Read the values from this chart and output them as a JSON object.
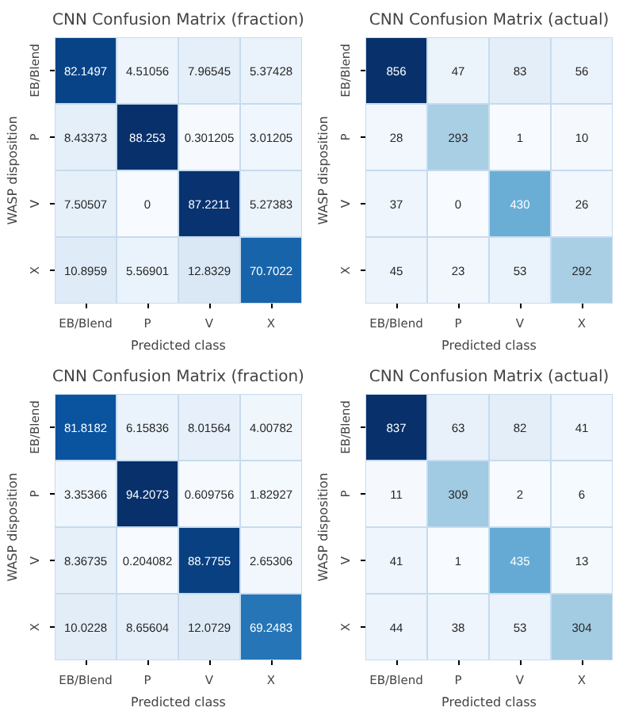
{
  "chart_data": [
    {
      "type": "heatmap",
      "title": "CNN Confusion Matrix (fraction)",
      "xlabel": "Predicted class",
      "ylabel": "WASP disposition",
      "categories": [
        "EB/Blend",
        "P",
        "V",
        "X"
      ],
      "y_categories": [
        "EB/Blend",
        "P",
        "V",
        "X"
      ],
      "data_labels": true,
      "cells": [
        [
          82.1497,
          4.51056,
          7.96545,
          5.37428
        ],
        [
          8.43373,
          88.253,
          0.301205,
          3.01205
        ],
        [
          7.50507,
          0,
          87.2211,
          5.27383
        ],
        [
          10.8959,
          5.56901,
          12.8329,
          70.7022
        ]
      ]
    },
    {
      "type": "heatmap",
      "title": "CNN Confusion Matrix (actual)",
      "xlabel": "Predicted class",
      "ylabel": "WASP disposition",
      "categories": [
        "EB/Blend",
        "P",
        "V",
        "X"
      ],
      "y_categories": [
        "EB/Blend",
        "P",
        "V",
        "X"
      ],
      "data_labels": true,
      "cells": [
        [
          856,
          47,
          83,
          56
        ],
        [
          28,
          293,
          1,
          10
        ],
        [
          37,
          0,
          430,
          26
        ],
        [
          45,
          23,
          53,
          292
        ]
      ]
    },
    {
      "type": "heatmap",
      "title": "CNN Confusion Matrix (fraction)",
      "xlabel": "Predicted class",
      "ylabel": "WASP disposition",
      "categories": [
        "EB/Blend",
        "P",
        "V",
        "X"
      ],
      "y_categories": [
        "EB/Blend",
        "P",
        "V",
        "X"
      ],
      "data_labels": true,
      "cells": [
        [
          81.8182,
          6.15836,
          8.01564,
          4.00782
        ],
        [
          3.35366,
          94.2073,
          0.609756,
          1.82927
        ],
        [
          8.36735,
          0.204082,
          88.7755,
          2.65306
        ],
        [
          10.0228,
          8.65604,
          12.0729,
          69.2483
        ]
      ]
    },
    {
      "type": "heatmap",
      "title": "CNN Confusion Matrix (actual)",
      "xlabel": "Predicted class",
      "ylabel": "WASP disposition",
      "categories": [
        "EB/Blend",
        "P",
        "V",
        "X"
      ],
      "y_categories": [
        "EB/Blend",
        "P",
        "V",
        "X"
      ],
      "data_labels": true,
      "cells": [
        [
          837,
          63,
          82,
          41
        ],
        [
          11,
          309,
          2,
          6
        ],
        [
          41,
          1,
          435,
          13
        ],
        [
          44,
          38,
          53,
          304
        ]
      ]
    }
  ]
}
